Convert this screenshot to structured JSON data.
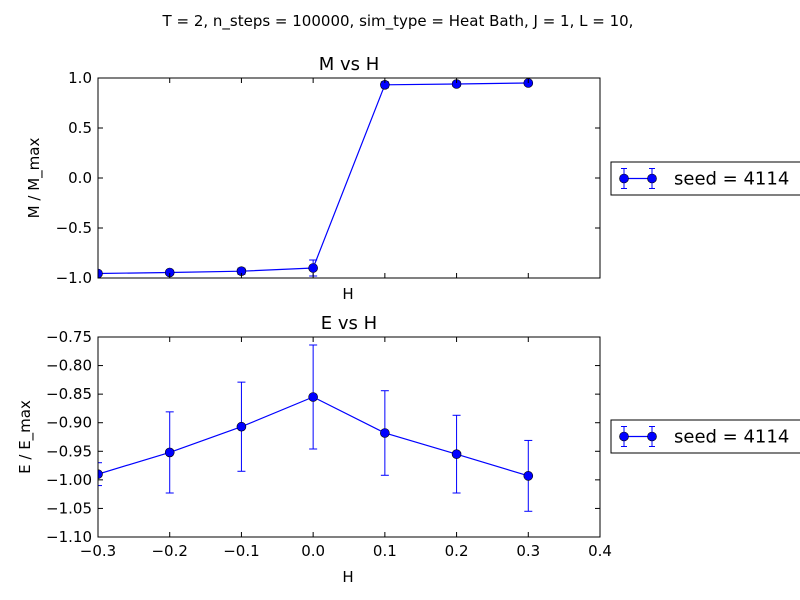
{
  "figure": {
    "suptitle": "T = 2, n_steps = 100000, sim_type = Heat Bath, J = 1, L = 10,"
  },
  "chart_data": [
    {
      "type": "line",
      "title": "M vs H",
      "xlabel": "H",
      "ylabel": "M / M_max",
      "xlim": [
        -0.3,
        0.4
      ],
      "ylim": [
        -1.0,
        1.0
      ],
      "show_xticklabels": false,
      "yticks": [
        -1.0,
        -0.5,
        0.0,
        0.5,
        1.0
      ],
      "ytick_labels": [
        "−1.0",
        "−0.5",
        "0.0",
        "0.5",
        "1.0"
      ],
      "grid": false,
      "legend_position": "right-outside",
      "series": [
        {
          "name": "seed = 4114",
          "color": "#0000ff",
          "marker": "circle",
          "x": [
            -0.3,
            -0.2,
            -0.1,
            0.0,
            0.1,
            0.2,
            0.3
          ],
          "y": [
            -0.955,
            -0.945,
            -0.932,
            -0.9,
            0.932,
            0.94,
            0.95
          ],
          "yerr": [
            0.015,
            0.02,
            0.03,
            0.08,
            0.03,
            0.025,
            0.02
          ]
        }
      ]
    },
    {
      "type": "line",
      "title": "E vs H",
      "xlabel": "H",
      "ylabel": "E / E_max",
      "xlim": [
        -0.3,
        0.4
      ],
      "ylim": [
        -1.1,
        -0.75
      ],
      "xticks": [
        -0.3,
        -0.2,
        -0.1,
        0.0,
        0.1,
        0.2,
        0.3,
        0.4
      ],
      "xtick_labels": [
        "−0.3",
        "−0.2",
        "−0.1",
        "0.0",
        "0.1",
        "0.2",
        "0.3",
        "0.4"
      ],
      "yticks": [
        -1.1,
        -1.05,
        -1.0,
        -0.95,
        -0.9,
        -0.85,
        -0.8,
        -0.75
      ],
      "ytick_labels": [
        "−1.10",
        "−1.05",
        "−1.00",
        "−0.95",
        "−0.90",
        "−0.85",
        "−0.80",
        "−0.75"
      ],
      "grid": false,
      "legend_position": "right-outside",
      "series": [
        {
          "name": "seed = 4114",
          "color": "#0000ff",
          "marker": "circle",
          "x": [
            -0.3,
            -0.2,
            -0.1,
            0.0,
            0.1,
            0.2,
            0.3
          ],
          "y": [
            -0.99,
            -0.952,
            -0.907,
            -0.855,
            -0.918,
            -0.955,
            -0.993
          ],
          "yerr": [
            0.02,
            0.071,
            0.078,
            0.091,
            0.074,
            0.068,
            0.062
          ]
        }
      ]
    }
  ]
}
